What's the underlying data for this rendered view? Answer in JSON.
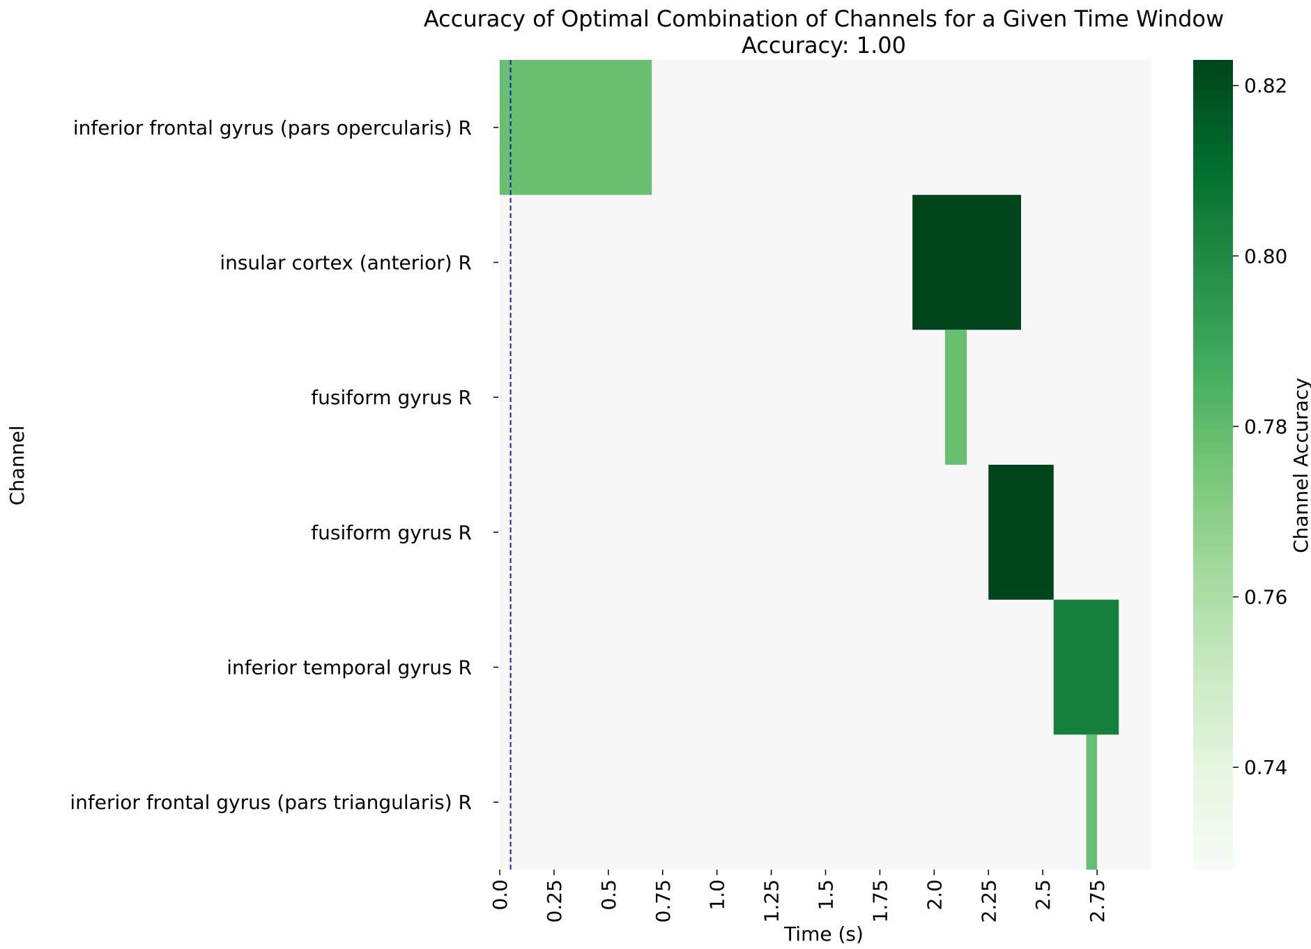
{
  "chart_data": {
    "type": "heatmap",
    "title": "Accuracy of Optimal Combination of Channels for a Given Time Window",
    "subtitle": "Accuracy: 1.00",
    "xlabel": "Time (s)",
    "ylabel": "Channel",
    "x_ticks": [
      "0.0",
      "0.25",
      "0.5",
      "0.75",
      "1.0",
      "1.25",
      "1.5",
      "1.75",
      "2.0",
      "2.25",
      "2.5",
      "2.75"
    ],
    "xlim": [
      0,
      3.0
    ],
    "channels": [
      "inferior frontal gyrus (pars opercularis) R",
      "insular cortex (anterior) R",
      "fusiform gyrus R",
      "fusiform gyrus R",
      "inferior temporal gyrus R",
      "inferior frontal gyrus (pars triangularis) R"
    ],
    "cells": [
      {
        "channel_index": 0,
        "start": 0.0,
        "end": 0.7,
        "value": 0.778
      },
      {
        "channel_index": 1,
        "start": 1.9,
        "end": 2.4,
        "value": 0.823
      },
      {
        "channel_index": 2,
        "start": 2.05,
        "end": 2.15,
        "value": 0.778
      },
      {
        "channel_index": 3,
        "start": 2.25,
        "end": 2.55,
        "value": 0.823
      },
      {
        "channel_index": 4,
        "start": 2.55,
        "end": 2.85,
        "value": 0.804
      },
      {
        "channel_index": 5,
        "start": 2.7,
        "end": 2.75,
        "value": 0.778
      }
    ],
    "background_color": "#f7f7f7",
    "vline": {
      "x": 0.05,
      "color": "#1a1aa6",
      "style": "dashed"
    },
    "colorbar": {
      "label": "Channel Accuracy",
      "min": 0.728,
      "max": 0.823,
      "ticks": [
        "0.74",
        "0.76",
        "0.78",
        "0.80",
        "0.82"
      ],
      "colormap": "Greens",
      "colors": [
        "#f7fcf5",
        "#e5f5e0",
        "#c7e9c0",
        "#a1d99b",
        "#74c476",
        "#41ab5d",
        "#238b45",
        "#006d2c",
        "#00441b"
      ]
    }
  }
}
